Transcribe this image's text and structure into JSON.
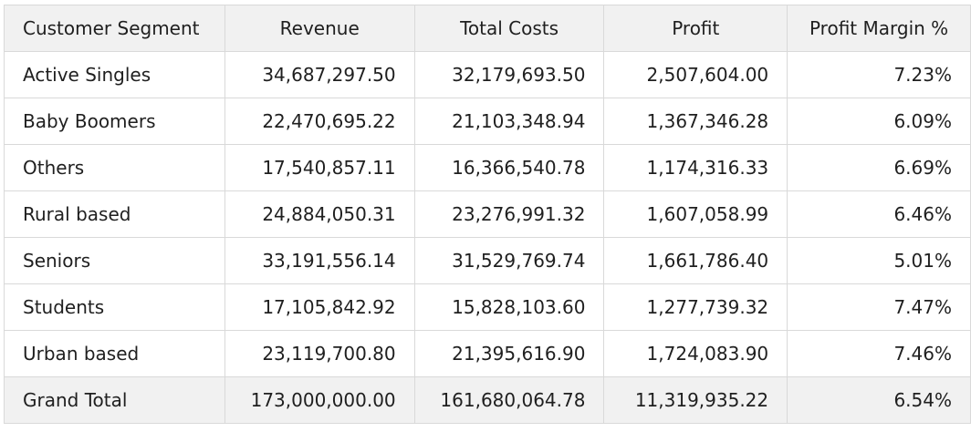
{
  "table": {
    "headers": [
      "Customer Segment",
      "Revenue",
      "Total Costs",
      "Profit",
      "Profit Margin %"
    ],
    "rows": [
      [
        "Active Singles",
        "34,687,297.50",
        "32,179,693.50",
        "2,507,604.00",
        "7.23%"
      ],
      [
        "Baby Boomers",
        "22,470,695.22",
        "21,103,348.94",
        "1,367,346.28",
        "6.09%"
      ],
      [
        "Others",
        "17,540,857.11",
        "16,366,540.78",
        "1,174,316.33",
        "6.69%"
      ],
      [
        "Rural based",
        "24,884,050.31",
        "23,276,991.32",
        "1,607,058.99",
        "6.46%"
      ],
      [
        "Seniors",
        "33,191,556.14",
        "31,529,769.74",
        "1,661,786.40",
        "5.01%"
      ],
      [
        "Students",
        "17,105,842.92",
        "15,828,103.60",
        "1,277,739.32",
        "7.47%"
      ],
      [
        "Urban based",
        "23,119,700.80",
        "21,395,616.90",
        "1,724,083.90",
        "7.46%"
      ]
    ],
    "total": [
      "Grand Total",
      "173,000,000.00",
      "161,680,064.78",
      "11,319,935.22",
      "6.54%"
    ]
  }
}
